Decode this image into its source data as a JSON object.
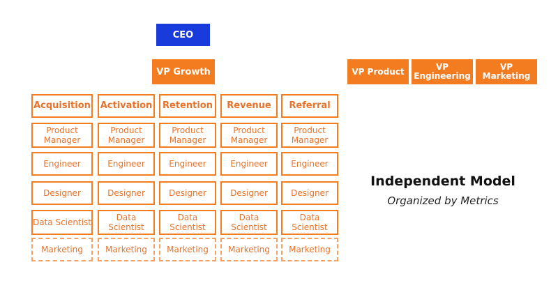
{
  "ceo": "CEO",
  "vp_growth": "VP Growth",
  "vps": [
    "VP Product",
    "VP Engineering",
    "VP Marketing"
  ],
  "columns": [
    "Acquisition",
    "Activation",
    "Retention",
    "Revenue",
    "Referral"
  ],
  "roles": {
    "product_manager": "Product Manager",
    "engineer": "Engineer",
    "designer": "Designer",
    "data_scientist": "Data Scientist",
    "marketing": "Marketing"
  },
  "title": "Independent Model",
  "subtitle": "Organized by Metrics",
  "colors": {
    "orange": "#f47c20",
    "ceo_blue": "#1a3bdc",
    "dashed_orange": "#f4a062"
  }
}
